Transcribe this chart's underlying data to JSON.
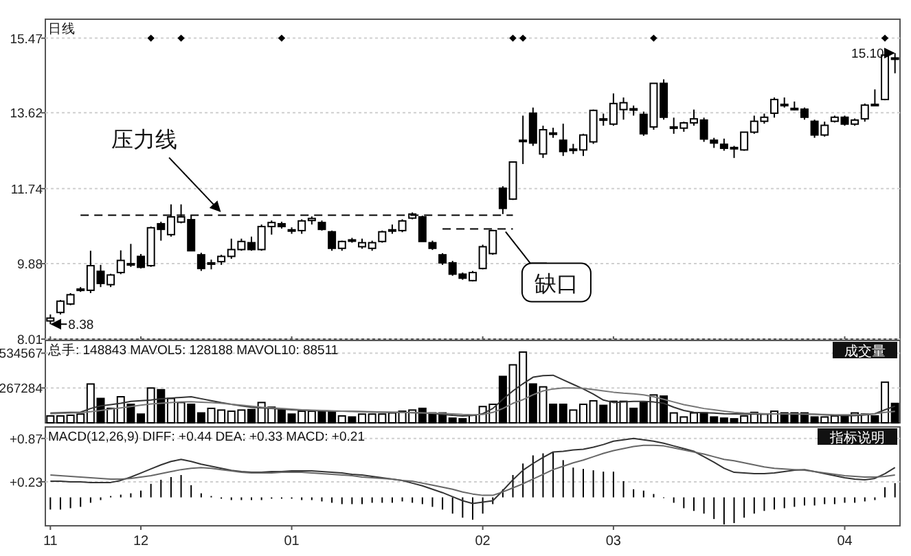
{
  "chart_data": [
    {
      "type": "candlestick",
      "title": "日线",
      "color": "#000000",
      "ylim": [
        8.01,
        15.94
      ],
      "yticks": [
        8.01,
        9.88,
        11.74,
        13.62,
        15.47
      ],
      "grid": "y",
      "tick_labels": "y",
      "categories": [
        "11",
        null,
        null,
        null,
        null,
        null,
        null,
        null,
        null,
        "12",
        null,
        null,
        null,
        null,
        null,
        null,
        null,
        null,
        null,
        null,
        null,
        null,
        null,
        null,
        "01",
        null,
        null,
        null,
        null,
        null,
        null,
        null,
        null,
        null,
        null,
        null,
        null,
        null,
        null,
        null,
        null,
        null,
        null,
        "02",
        null,
        null,
        null,
        null,
        null,
        null,
        null,
        null,
        null,
        null,
        null,
        null,
        "03",
        null,
        null,
        null,
        null,
        null,
        null,
        null,
        null,
        null,
        null,
        null,
        null,
        null,
        null,
        null,
        null,
        null,
        null,
        null,
        null,
        null,
        null,
        "04",
        null,
        null,
        null,
        null,
        null
      ],
      "ohlc": [
        [
          8.46,
          8.62,
          8.38,
          8.53
        ],
        [
          8.67,
          8.98,
          8.62,
          8.95
        ],
        [
          8.88,
          9.15,
          8.85,
          9.11
        ],
        [
          9.22,
          9.3,
          9.18,
          9.25
        ],
        [
          9.22,
          10.2,
          9.15,
          9.83
        ],
        [
          9.69,
          9.85,
          9.3,
          9.39
        ],
        [
          9.36,
          9.63,
          9.3,
          9.6
        ],
        [
          9.66,
          10.21,
          9.62,
          9.96
        ],
        [
          9.88,
          10.37,
          9.8,
          9.86
        ],
        [
          10.06,
          10.12,
          9.76,
          9.79
        ],
        [
          9.83,
          10.8,
          9.8,
          10.77
        ],
        [
          10.87,
          10.92,
          10.45,
          10.73
        ],
        [
          10.6,
          11.35,
          10.55,
          11.04
        ],
        [
          10.91,
          11.35,
          10.88,
          11.04
        ],
        [
          10.97,
          11.08,
          10.2,
          10.2
        ],
        [
          10.1,
          10.15,
          9.7,
          9.76
        ],
        [
          9.88,
          9.98,
          9.74,
          9.9
        ],
        [
          9.93,
          10.1,
          9.85,
          10.06
        ],
        [
          10.06,
          10.5,
          10.0,
          10.23
        ],
        [
          10.23,
          10.5,
          10.2,
          10.43
        ],
        [
          10.4,
          10.55,
          10.2,
          10.23
        ],
        [
          10.23,
          10.85,
          10.2,
          10.8
        ],
        [
          10.8,
          10.95,
          10.6,
          10.9
        ],
        [
          10.87,
          10.92,
          10.75,
          10.8
        ],
        [
          10.72,
          10.78,
          10.62,
          10.7
        ],
        [
          10.7,
          10.98,
          10.62,
          10.94
        ],
        [
          10.95,
          11.05,
          10.85,
          11.0
        ],
        [
          10.9,
          10.95,
          10.7,
          10.73
        ],
        [
          10.67,
          10.7,
          10.2,
          10.26
        ],
        [
          10.26,
          10.45,
          10.2,
          10.43
        ],
        [
          10.47,
          10.52,
          10.4,
          10.45
        ],
        [
          10.3,
          10.5,
          10.25,
          10.4
        ],
        [
          10.26,
          10.45,
          10.2,
          10.4
        ],
        [
          10.43,
          10.7,
          10.4,
          10.67
        ],
        [
          10.7,
          10.85,
          10.62,
          10.72
        ],
        [
          10.7,
          10.98,
          10.66,
          10.94
        ],
        [
          11.01,
          11.15,
          10.98,
          11.11
        ],
        [
          11.04,
          11.07,
          10.43,
          10.43
        ],
        [
          10.4,
          10.45,
          10.22,
          10.26
        ],
        [
          10.1,
          10.14,
          9.85,
          9.9
        ],
        [
          9.9,
          9.95,
          9.58,
          9.62
        ],
        [
          9.62,
          9.66,
          9.48,
          9.52
        ],
        [
          9.46,
          9.7,
          9.44,
          9.66
        ],
        [
          9.76,
          10.35,
          9.74,
          10.3
        ],
        [
          10.13,
          10.72,
          10.1,
          10.7
        ],
        [
          11.75,
          11.8,
          11.11,
          11.25
        ],
        [
          11.48,
          12.4,
          11.46,
          12.4
        ],
        [
          12.94,
          13.55,
          12.35,
          12.94
        ],
        [
          13.61,
          13.75,
          12.8,
          12.87
        ],
        [
          12.6,
          13.3,
          12.5,
          13.2
        ],
        [
          13.12,
          13.25,
          13.0,
          13.1
        ],
        [
          12.94,
          13.35,
          12.55,
          12.66
        ],
        [
          12.7,
          12.85,
          12.6,
          12.72
        ],
        [
          12.7,
          13.1,
          12.55,
          13.07
        ],
        [
          12.9,
          13.7,
          12.85,
          13.68
        ],
        [
          13.47,
          13.6,
          13.3,
          13.45
        ],
        [
          13.34,
          14.1,
          13.3,
          13.85
        ],
        [
          13.7,
          14.0,
          13.45,
          13.87
        ],
        [
          13.72,
          13.8,
          13.55,
          13.7
        ],
        [
          13.58,
          13.65,
          13.05,
          13.1
        ],
        [
          13.27,
          14.35,
          13.2,
          14.35
        ],
        [
          14.35,
          14.45,
          13.45,
          13.51
        ],
        [
          13.27,
          13.5,
          13.1,
          13.27
        ],
        [
          13.24,
          13.4,
          13.15,
          13.37
        ],
        [
          13.37,
          13.7,
          13.3,
          13.47
        ],
        [
          13.44,
          13.5,
          12.9,
          12.97
        ],
        [
          12.94,
          13.0,
          12.75,
          12.87
        ],
        [
          12.84,
          12.98,
          12.68,
          12.74
        ],
        [
          12.76,
          12.8,
          12.5,
          12.74
        ],
        [
          12.7,
          13.14,
          12.68,
          13.14
        ],
        [
          13.14,
          13.55,
          13.1,
          13.41
        ],
        [
          13.41,
          13.6,
          13.35,
          13.51
        ],
        [
          13.61,
          14.0,
          13.5,
          13.95
        ],
        [
          13.83,
          14.0,
          13.75,
          13.81
        ],
        [
          13.73,
          13.9,
          13.68,
          13.71
        ],
        [
          13.71,
          13.75,
          13.45,
          13.51
        ],
        [
          13.41,
          13.45,
          13.0,
          13.07
        ],
        [
          13.07,
          13.4,
          13.03,
          13.31
        ],
        [
          13.41,
          13.55,
          13.38,
          13.51
        ],
        [
          13.51,
          13.55,
          13.3,
          13.34
        ],
        [
          13.34,
          13.48,
          13.3,
          13.44
        ],
        [
          13.47,
          13.85,
          13.4,
          13.81
        ],
        [
          13.83,
          14.2,
          13.78,
          13.81
        ],
        [
          13.95,
          15.08,
          13.93,
          15.05
        ],
        [
          14.98,
          15.1,
          14.6,
          14.96
        ]
      ],
      "series": [
        {
          "type": "scatter",
          "marker": "diamond",
          "color": "#000000",
          "values": [
            null,
            null,
            null,
            null,
            null,
            null,
            null,
            null,
            null,
            null,
            15.47,
            null,
            null,
            15.47,
            null,
            null,
            null,
            null,
            null,
            null,
            null,
            null,
            null,
            15.47,
            null,
            null,
            null,
            null,
            null,
            null,
            null,
            null,
            null,
            null,
            null,
            null,
            null,
            null,
            null,
            null,
            null,
            null,
            null,
            null,
            null,
            null,
            15.47,
            15.47,
            null,
            null,
            null,
            null,
            null,
            null,
            null,
            null,
            null,
            null,
            null,
            null,
            15.47,
            null,
            null,
            null,
            null,
            null,
            null,
            null,
            null,
            null,
            null,
            null,
            null,
            null,
            null,
            null,
            null,
            null,
            null,
            null,
            null,
            null,
            null,
            15.47,
            null
          ]
        },
        {
          "type": "line",
          "line_style": "dashed",
          "color": "#000000",
          "values": [
            null,
            null,
            null,
            11.08,
            11.08,
            11.08,
            11.08,
            11.08,
            11.08,
            11.08,
            11.08,
            11.08,
            11.08,
            11.08,
            11.08,
            11.08,
            11.08,
            11.08,
            11.08,
            11.08,
            11.08,
            11.08,
            11.08,
            11.08,
            11.08,
            11.08,
            11.08,
            11.08,
            11.08,
            11.08,
            11.08,
            11.08,
            11.08,
            11.08,
            11.08,
            11.08,
            11.08,
            11.08,
            11.08,
            11.08,
            11.08,
            11.08,
            11.08,
            11.08,
            11.08,
            11.08,
            11.08,
            null,
            null,
            null,
            null,
            null,
            null,
            null,
            null,
            null,
            null,
            null,
            null,
            null,
            null,
            null,
            null,
            null,
            null,
            null,
            null,
            null,
            null,
            null,
            null,
            null,
            null,
            null,
            null,
            null,
            null,
            null,
            null,
            null,
            null,
            null,
            null,
            null,
            null
          ]
        },
        {
          "type": "line",
          "line_style": "dashed",
          "color": "#000000",
          "values": [
            null,
            null,
            null,
            null,
            null,
            null,
            null,
            null,
            null,
            null,
            null,
            null,
            null,
            null,
            null,
            null,
            null,
            null,
            null,
            null,
            null,
            null,
            null,
            null,
            null,
            null,
            null,
            null,
            null,
            null,
            null,
            null,
            null,
            null,
            null,
            null,
            null,
            null,
            null,
            10.74,
            10.74,
            10.74,
            10.74,
            10.74,
            10.74,
            10.74,
            10.74,
            null,
            null,
            null,
            null,
            null,
            null,
            null,
            null,
            null,
            null,
            null,
            null,
            null,
            null,
            null,
            null,
            null,
            null,
            null,
            null,
            null,
            null,
            null,
            null,
            null,
            null,
            null,
            null,
            null,
            null,
            null,
            null,
            null,
            null,
            null,
            null,
            null,
            null
          ]
        }
      ],
      "annotations": [
        "8.38",
        "15.10",
        {
          "text": "压力线",
          "y": 11.08
        },
        "缺口"
      ]
    },
    {
      "type": "bar",
      "title": "总手: 148843 MAVOL5: 128188 MAVOL10: 88511",
      "ylim": [
        0,
        632000
      ],
      "yticks": [
        267284,
        534567
      ],
      "grid": "y",
      "tick_labels": "y",
      "categories": [
        "11",
        null,
        null,
        null,
        null,
        null,
        null,
        null,
        null,
        "12",
        null,
        null,
        null,
        null,
        null,
        null,
        null,
        null,
        null,
        null,
        null,
        null,
        null,
        null,
        "01",
        null,
        null,
        null,
        null,
        null,
        null,
        null,
        null,
        null,
        null,
        null,
        null,
        null,
        null,
        null,
        null,
        null,
        null,
        "02",
        null,
        null,
        null,
        null,
        null,
        null,
        null,
        null,
        null,
        null,
        null,
        null,
        "03",
        null,
        null,
        null,
        null,
        null,
        null,
        null,
        null,
        null,
        null,
        null,
        null,
        null,
        null,
        null,
        null,
        null,
        null,
        null,
        null,
        null,
        null,
        "04",
        null,
        null,
        null,
        null,
        null
      ],
      "series": [
        {
          "type": "bar",
          "values": [
            53000,
            53000,
            58000,
            67000,
            298000,
            187000,
            111000,
            200000,
            142000,
            67000,
            267000,
            254000,
            187000,
            156000,
            142000,
            76000,
            111000,
            98000,
            89000,
            98000,
            102000,
            156000,
            120000,
            98000,
            67000,
            89000,
            89000,
            89000,
            89000,
            53000,
            45000,
            67000,
            67000,
            67000,
            76000,
            89000,
            98000,
            111000,
            76000,
            76000,
            36000,
            31000,
            58000,
            125000,
            142000,
            356000,
            445000,
            543000,
            298000,
            276000,
            142000,
            142000,
            98000,
            142000,
            169000,
            134000,
            165000,
            165000,
            111000,
            156000,
            214000,
            205000,
            76000,
            45000,
            76000,
            76000,
            45000,
            36000,
            31000,
            53000,
            80000,
            67000,
            89000,
            76000,
            76000,
            76000,
            45000,
            45000,
            53000,
            53000,
            76000,
            67000,
            53000,
            312000,
            148843
          ],
          "colors": [
            "#ffffff",
            "#ffffff",
            "#ffffff",
            "#ffffff",
            "#ffffff",
            "#000000",
            "#ffffff",
            "#ffffff",
            "#000000",
            "#000000",
            "#ffffff",
            "#000000",
            "#ffffff",
            "#ffffff",
            "#000000",
            "#000000",
            "#ffffff",
            "#ffffff",
            "#ffffff",
            "#ffffff",
            "#000000",
            "#ffffff",
            "#ffffff",
            "#000000",
            "#000000",
            "#ffffff",
            "#ffffff",
            "#000000",
            "#000000",
            "#ffffff",
            "#000000",
            "#ffffff",
            "#ffffff",
            "#ffffff",
            "#ffffff",
            "#ffffff",
            "#ffffff",
            "#000000",
            "#000000",
            "#000000",
            "#000000",
            "#000000",
            "#ffffff",
            "#ffffff",
            "#ffffff",
            "#000000",
            "#ffffff",
            "#ffffff",
            "#000000",
            "#ffffff",
            "#000000",
            "#000000",
            "#ffffff",
            "#ffffff",
            "#ffffff",
            "#000000",
            "#ffffff",
            "#ffffff",
            "#000000",
            "#000000",
            "#ffffff",
            "#000000",
            "#ffffff",
            "#ffffff",
            "#ffffff",
            "#000000",
            "#000000",
            "#000000",
            "#000000",
            "#ffffff",
            "#ffffff",
            "#ffffff",
            "#ffffff",
            "#000000",
            "#000000",
            "#000000",
            "#000000",
            "#ffffff",
            "#ffffff",
            "#000000",
            "#ffffff",
            "#ffffff",
            "#000000",
            "#ffffff",
            "#000000"
          ]
        },
        {
          "type": "line",
          "color": "#333333",
          "values": [
            75000,
            78000,
            80000,
            82000,
            110000,
            130000,
            140000,
            150000,
            165000,
            170000,
            175000,
            185000,
            190000,
            195000,
            200000,
            185000,
            170000,
            155000,
            142000,
            130000,
            120000,
            115000,
            110000,
            105000,
            100000,
            97000,
            95000,
            92000,
            90000,
            90000,
            88000,
            85000,
            83000,
            82000,
            80000,
            80000,
            78000,
            76000,
            72000,
            65000,
            58000,
            53000,
            56000,
            70000,
            110000,
            180000,
            245000,
            300000,
            350000,
            362000,
            365000,
            330000,
            295000,
            260000,
            220000,
            175000,
            156000,
            160000,
            165000,
            165000,
            160000,
            150000,
            120000,
            95000,
            80000,
            78000,
            75000,
            70000,
            68000,
            67000,
            67000,
            67000,
            68000,
            68000,
            67000,
            67000,
            66000,
            62000,
            58000,
            55000,
            55000,
            60000,
            70000,
            100000,
            128188
          ]
        },
        {
          "type": "line",
          "color": "#777777",
          "values": [
            70000,
            72000,
            75000,
            78000,
            85000,
            95000,
            105000,
            115000,
            125000,
            135000,
            145000,
            150000,
            155000,
            160000,
            162000,
            158000,
            155000,
            150000,
            142000,
            135000,
            128000,
            120000,
            115000,
            110000,
            105000,
            100000,
            97000,
            95000,
            92000,
            90000,
            88000,
            87000,
            85000,
            83000,
            82000,
            80000,
            78000,
            76000,
            74000,
            72000,
            68000,
            64000,
            62000,
            65000,
            80000,
            110000,
            150000,
            178000,
            215000,
            245000,
            260000,
            267000,
            267000,
            265000,
            255000,
            245000,
            235000,
            228000,
            223000,
            215000,
            200000,
            180000,
            160000,
            140000,
            125000,
            110000,
            100000,
            90000,
            80000,
            75000,
            72000,
            70000,
            69000,
            68000,
            68000,
            67000,
            66000,
            64000,
            62000,
            62000,
            62000,
            64000,
            70000,
            80000,
            88511
          ]
        }
      ],
      "annotations": [
        "成交量"
      ]
    },
    {
      "type": "bar",
      "title": "MACD(12,26,9) DIFF: +0.44 DEA: +0.33 MACD: +0.21",
      "ylim": [
        -0.42,
        1.04
      ],
      "yticks": [
        {
          "value": 0.23,
          "label": "+0.23"
        },
        {
          "value": 0.87,
          "label": "+0.87"
        }
      ],
      "grid": "y",
      "categories": [
        "11",
        null,
        null,
        null,
        null,
        null,
        null,
        null,
        null,
        "12",
        null,
        null,
        null,
        null,
        null,
        null,
        null,
        null,
        null,
        null,
        null,
        null,
        null,
        null,
        "01",
        null,
        null,
        null,
        null,
        null,
        null,
        null,
        null,
        null,
        null,
        null,
        null,
        null,
        null,
        null,
        null,
        null,
        null,
        "02",
        null,
        null,
        null,
        null,
        null,
        null,
        null,
        null,
        null,
        null,
        null,
        null,
        "03",
        null,
        null,
        null,
        null,
        null,
        null,
        null,
        null,
        null,
        null,
        null,
        null,
        null,
        null,
        null,
        null,
        null,
        null,
        null,
        null,
        null,
        null,
        "04",
        null,
        null,
        null,
        null,
        null
      ],
      "series": [
        {
          "type": "bar",
          "color": "#000000",
          "values": [
            -0.18,
            -0.18,
            -0.16,
            -0.14,
            -0.08,
            -0.04,
            0.02,
            0.04,
            0.06,
            0.1,
            0.2,
            0.26,
            0.3,
            0.33,
            0.18,
            0.06,
            0.02,
            -0.02,
            -0.04,
            -0.04,
            -0.04,
            -0.04,
            -0.02,
            -0.02,
            -0.02,
            -0.04,
            -0.04,
            -0.06,
            -0.08,
            -0.1,
            -0.1,
            -0.1,
            -0.08,
            -0.08,
            -0.08,
            -0.06,
            -0.08,
            -0.1,
            -0.14,
            -0.18,
            -0.24,
            -0.3,
            -0.33,
            -0.24,
            -0.1,
            0.12,
            0.33,
            0.5,
            0.62,
            0.65,
            0.67,
            0.55,
            0.44,
            0.42,
            0.4,
            0.38,
            0.38,
            0.24,
            0.12,
            0.1,
            0.05,
            0.0,
            -0.08,
            -0.16,
            -0.2,
            -0.24,
            -0.32,
            -0.4,
            -0.38,
            -0.3,
            -0.24,
            -0.2,
            -0.18,
            -0.16,
            -0.14,
            -0.12,
            -0.12,
            -0.1,
            -0.1,
            -0.08,
            -0.08,
            -0.06,
            -0.04,
            0.15,
            0.21
          ]
        },
        {
          "type": "line",
          "color": "#333333",
          "values": [
            0.24,
            0.24,
            0.23,
            0.23,
            0.22,
            0.22,
            0.22,
            0.25,
            0.3,
            0.36,
            0.42,
            0.48,
            0.53,
            0.56,
            0.53,
            0.49,
            0.46,
            0.43,
            0.4,
            0.38,
            0.37,
            0.37,
            0.38,
            0.38,
            0.39,
            0.39,
            0.39,
            0.38,
            0.37,
            0.36,
            0.34,
            0.33,
            0.31,
            0.29,
            0.27,
            0.25,
            0.21,
            0.17,
            0.12,
            0.07,
            0.01,
            -0.05,
            -0.09,
            -0.07,
            -0.05,
            0.1,
            0.26,
            0.4,
            0.5,
            0.59,
            0.67,
            0.68,
            0.7,
            0.71,
            0.74,
            0.78,
            0.83,
            0.85,
            0.87,
            0.85,
            0.83,
            0.8,
            0.76,
            0.72,
            0.68,
            0.6,
            0.52,
            0.43,
            0.37,
            0.36,
            0.35,
            0.35,
            0.36,
            0.38,
            0.4,
            0.41,
            0.38,
            0.35,
            0.32,
            0.29,
            0.27,
            0.26,
            0.28,
            0.35,
            0.44
          ]
        },
        {
          "type": "line",
          "color": "#666666",
          "values": [
            0.33,
            0.32,
            0.31,
            0.3,
            0.29,
            0.28,
            0.27,
            0.27,
            0.28,
            0.3,
            0.32,
            0.35,
            0.38,
            0.41,
            0.43,
            0.44,
            0.43,
            0.41,
            0.39,
            0.37,
            0.36,
            0.36,
            0.36,
            0.37,
            0.37,
            0.37,
            0.36,
            0.35,
            0.34,
            0.33,
            0.32,
            0.3,
            0.29,
            0.28,
            0.27,
            0.25,
            0.24,
            0.21,
            0.18,
            0.15,
            0.12,
            0.08,
            0.05,
            0.03,
            0.03,
            0.08,
            0.14,
            0.2,
            0.27,
            0.34,
            0.41,
            0.46,
            0.51,
            0.55,
            0.6,
            0.65,
            0.69,
            0.72,
            0.75,
            0.77,
            0.77,
            0.76,
            0.73,
            0.7,
            0.67,
            0.64,
            0.6,
            0.56,
            0.54,
            0.51,
            0.48,
            0.45,
            0.43,
            0.42,
            0.41,
            0.4,
            0.38,
            0.36,
            0.34,
            0.32,
            0.31,
            0.3,
            0.3,
            0.31,
            0.33
          ]
        }
      ],
      "annotations": [
        "指标说明"
      ]
    }
  ]
}
